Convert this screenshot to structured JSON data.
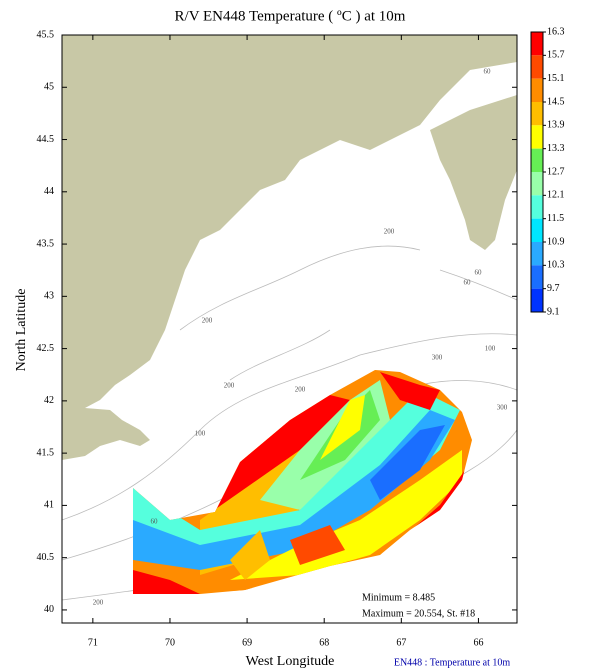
{
  "chart_data": {
    "type": "contour-map",
    "title": "R/V EN448 Temperature ( ºC ) at 10m",
    "x_label": "West Longitude",
    "y_label": "North Latitude",
    "xlim": [
      71.4,
      65.5
    ],
    "ylim": [
      39.875,
      45.5
    ],
    "xticks": [
      71,
      70,
      69,
      68,
      67,
      66
    ],
    "yticks": [
      40,
      40.5,
      41,
      41.5,
      42,
      42.5,
      43,
      43.5,
      44,
      44.5,
      45,
      45.5
    ],
    "colorbar": {
      "levels": [
        16.3,
        15.7,
        15.1,
        14.5,
        13.9,
        13.3,
        12.7,
        12.1,
        11.5,
        10.9,
        10.3,
        9.7,
        9.1
      ],
      "colors": [
        "#ff0000",
        "#ff4a00",
        "#ff8c00",
        "#ffbe00",
        "#ffff00",
        "#66ee55",
        "#99ffaa",
        "#55ffdd",
        "#00e6ff",
        "#2aaaff",
        "#1a6eff",
        "#0033ff"
      ]
    },
    "contour_labels": [
      60,
      200,
      60,
      60,
      200,
      300,
      100,
      200,
      200,
      300,
      100,
      60,
      200
    ],
    "annotations": [
      "Minimum = 8.485",
      "Maximum = 20.554, St. #18"
    ],
    "footer": "EN448 : Temperature at 10m"
  }
}
